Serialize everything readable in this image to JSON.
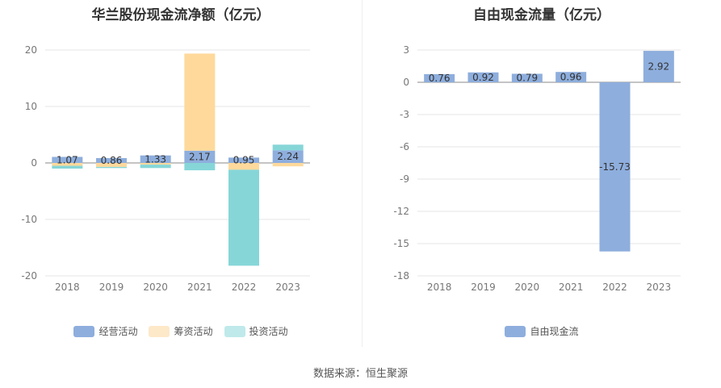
{
  "source": "数据来源：恒生聚源",
  "chart_data": [
    {
      "type": "bar",
      "stacked": true,
      "title": "华兰股份现金流净额（亿元）",
      "categories": [
        "2018",
        "2019",
        "2020",
        "2021",
        "2022",
        "2023"
      ],
      "ylim": [
        -20,
        20
      ],
      "yticks": [
        20,
        10,
        0,
        -10,
        -20
      ],
      "series": [
        {
          "name": "经营活动",
          "color": "#8eaedd",
          "values": [
            1.07,
            0.86,
            1.33,
            2.17,
            0.95,
            2.24
          ],
          "labels": [
            "1.07",
            "0.86",
            "1.33",
            "2.17",
            "0.95",
            "2.24"
          ]
        },
        {
          "name": "筹资活动",
          "color": "#fed99b",
          "legend_color": "#fde8c8",
          "values": [
            -0.5,
            -0.7,
            -0.3,
            17.2,
            -1.2,
            -0.6
          ]
        },
        {
          "name": "投资活动",
          "color": "#86d6d8",
          "legend_color": "#bfe9ea",
          "values": [
            -0.5,
            -0.2,
            -0.6,
            -1.3,
            -17.0,
            1.0
          ]
        }
      ],
      "legend_position": "bottom",
      "grid": true
    },
    {
      "type": "bar",
      "title": "自由现金流量（亿元）",
      "categories": [
        "2018",
        "2019",
        "2020",
        "2021",
        "2022",
        "2023"
      ],
      "ylim": [
        -18,
        3
      ],
      "yticks": [
        3,
        0,
        -3,
        -6,
        -9,
        -12,
        -15,
        -18
      ],
      "series": [
        {
          "name": "自由现金流",
          "color": "#8eaedd",
          "values": [
            0.76,
            0.92,
            0.79,
            0.96,
            -15.73,
            2.92
          ],
          "labels": [
            "0.76",
            "0.92",
            "0.79",
            "0.96",
            "-15.73",
            "2.92"
          ]
        }
      ],
      "legend_position": "bottom",
      "grid": true
    }
  ]
}
